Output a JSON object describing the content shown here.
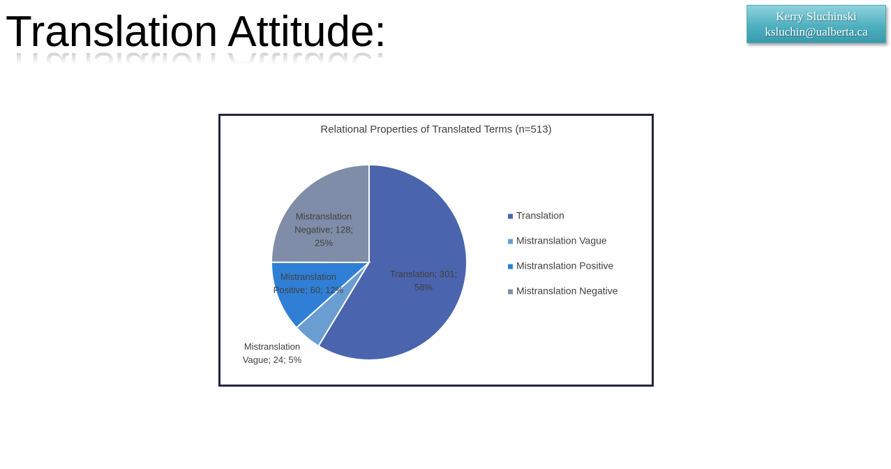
{
  "slide": {
    "title": "Translation Attitude:",
    "author": {
      "name": "Kerry Sluchinski",
      "email": "ksluchin@ualberta.ca"
    }
  },
  "chart_data": {
    "type": "pie",
    "title": "Relational Properties of Translated Terms (n=513)",
    "categories": [
      "Translation",
      "Mistranslation Vague",
      "Mistranslation Positive",
      "Mistranslation Negative"
    ],
    "values": [
      301,
      24,
      60,
      128
    ],
    "value_labels": [
      "Translation; 301; 58%",
      "Mistranslation Vague; 24; 5%",
      "Mistranslation Positive; 60; 12%",
      "Mistranslation Negative; 128; 25%"
    ],
    "colors": [
      "#4a64ad",
      "#6a9dd2",
      "#2f7fd6",
      "#7f8da8"
    ],
    "legend": "right"
  }
}
